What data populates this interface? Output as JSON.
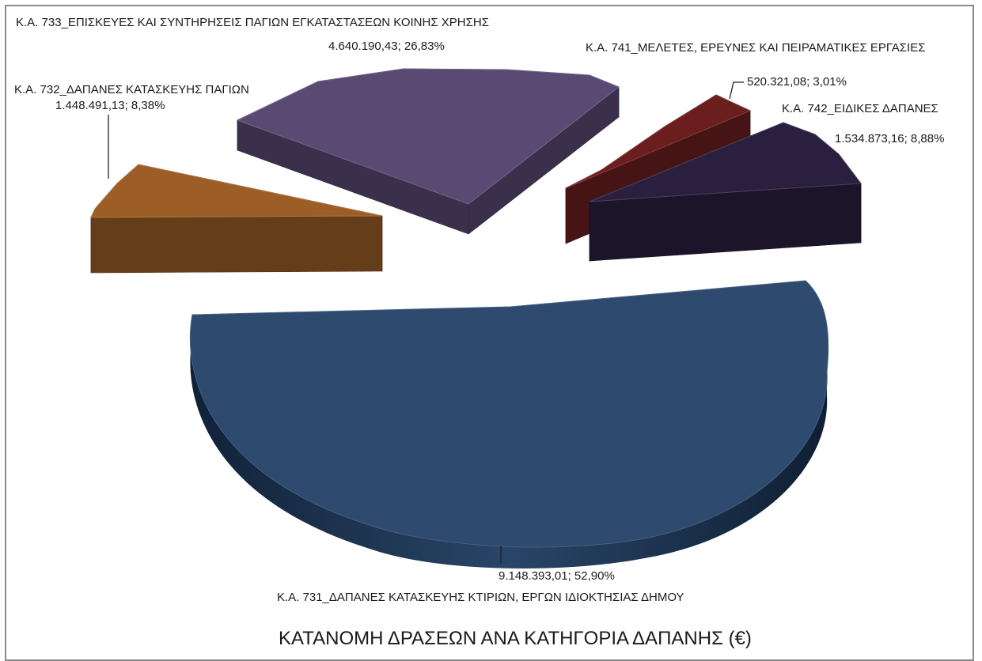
{
  "chart_data": {
    "type": "pie",
    "title": "ΚΑΤΑΝΟΜΗ ΔΡΑΣΕΩΝ ΑΝΑ ΚΑΤΗΓΟΡΙΑ ΔΑΠΑΝΗΣ (€)",
    "slices": [
      {
        "category": "Κ.Α. 731_ΔΑΠΑΝΕΣ ΚΑΤΑΣΚΕΥΗΣ ΚΤΙΡΙΩΝ, ΕΡΓΩΝ ΙΔΙΟΚΤΗΣΙΑΣ ΔΗΜΟΥ",
        "value": 9148393.01,
        "percent": 52.9,
        "label": "9.148.393,01; 52,90%",
        "color": "#2e4a6e"
      },
      {
        "category": "Κ.Α. 732_ΔΑΠΑΝΕΣ ΚΑΤΑΣΚΕΥΗΣ ΠΑΓΙΩΝ",
        "value": 1448491.13,
        "percent": 8.38,
        "label": "1.448.491,13; 8,38%",
        "color": "#9c5e26"
      },
      {
        "category": "Κ.Α. 733_ΕΠΙΣΚΕΥΕΣ ΚΑΙ ΣΥΝΤΗΡΗΣΕΙΣ ΠΑΓΙΩΝ ΕΓΚΑΤΑΣΤΑΣΕΩΝ ΚΟΙΝΗΣ ΧΡΗΣΗΣ",
        "value": 4640190.43,
        "percent": 26.83,
        "label": "4.640.190,43; 26,83%",
        "color": "#5a4a73"
      },
      {
        "category": "Κ.Α. 741_ΜΕΛΕΤΕΣ, ΕΡΕΥΝΕΣ ΚΑΙ ΠΕΙΡΑΜΑΤΙΚΕΣ ΕΡΓΑΣΙΕΣ",
        "value": 520321.08,
        "percent": 3.01,
        "label": "520.321,08; 3,01%",
        "color": "#6b1e1e"
      },
      {
        "category": "Κ.Α. 742_ΕΙΔΙΚΕΣ ΔΑΠΑΝΕΣ",
        "value": 1534873.16,
        "percent": 8.88,
        "label": "1.534.873,16; 8,88%",
        "color": "#2b1f3f"
      }
    ]
  }
}
